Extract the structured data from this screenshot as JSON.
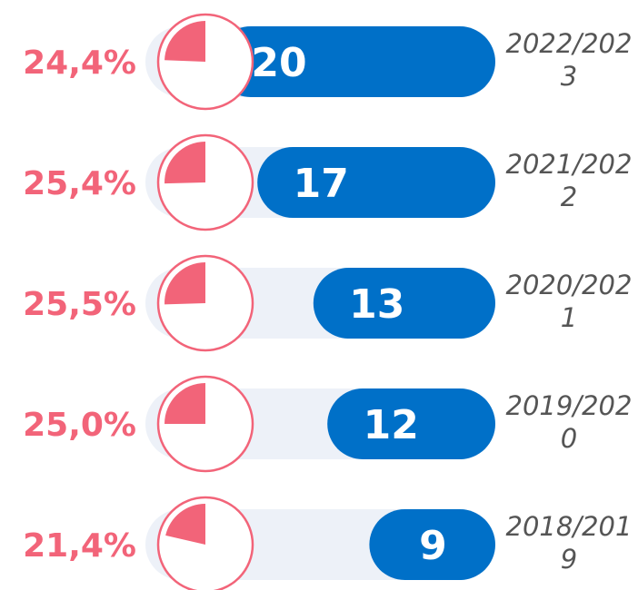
{
  "chart_data": {
    "type": "bar-pie-rows",
    "categories": [
      "2022/2023",
      "2021/2022",
      "2020/2021",
      "2019/2020",
      "2018/2019"
    ],
    "values": [
      20,
      17,
      13,
      12,
      9
    ],
    "color": "#0070c8",
    "xlim": [
      0,
      25
    ],
    "percentages": [
      24.4,
      25.4,
      25.5,
      25.0,
      21.4
    ],
    "percentage_labels": [
      "24,4%",
      "25,4%",
      "25,5%",
      "25,0%",
      "21,4%"
    ],
    "percentage_color": "#f26479"
  }
}
